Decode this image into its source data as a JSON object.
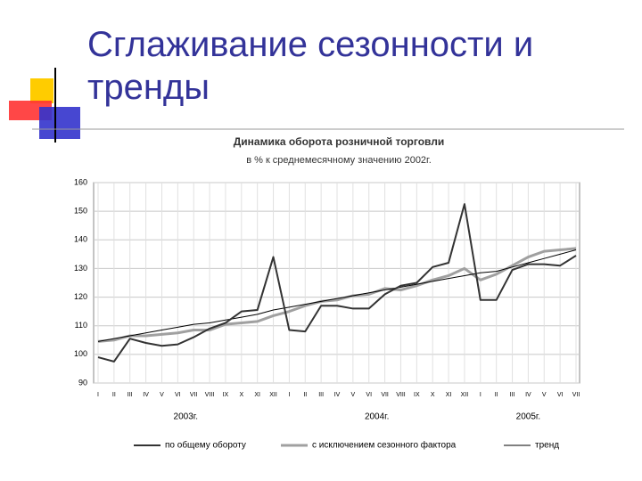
{
  "slide_title": "Сглаживание сезонности и тренды",
  "chart_data": {
    "type": "line",
    "title": "Динамика оборота розничной торговли",
    "subtitle": "в % к среднемесячному значению 2002г.",
    "categories": [
      "I",
      "II",
      "III",
      "IV",
      "V",
      "VI",
      "VII",
      "VIII",
      "IX",
      "X",
      "XI",
      "XII",
      "I",
      "II",
      "III",
      "IV",
      "V",
      "VI",
      "VII",
      "VIII",
      "IX",
      "X",
      "XI",
      "XII",
      "I",
      "II",
      "III",
      "IV",
      "V",
      "VI",
      "VII"
    ],
    "groups": [
      "2003г.",
      "2004г.",
      "2005г."
    ],
    "series": [
      {
        "name": "по общему обороту",
        "color": "#333333",
        "values": [
          99,
          97.5,
          105.5,
          104,
          103,
          103.5,
          106,
          109,
          111,
          115,
          115.5,
          134,
          108.5,
          108,
          117,
          117,
          116,
          116,
          121,
          124,
          125,
          130.5,
          132,
          152.5,
          119,
          119,
          129.5,
          131.5,
          131.5,
          131,
          134.5
        ]
      },
      {
        "name": "с исключением сезонного фактора",
        "color": "#a0a0a0",
        "values": [
          104.5,
          105,
          106.5,
          106.5,
          107,
          107.5,
          108.5,
          108.5,
          110.5,
          111,
          111.5,
          113.5,
          115,
          117,
          118.5,
          119,
          120.5,
          121,
          123,
          122.5,
          124,
          126,
          127.5,
          130,
          126,
          128,
          131,
          134,
          136,
          136.5,
          137
        ]
      },
      {
        "name": "тренд",
        "color": "#000000",
        "values": [
          104.5,
          105.5,
          106.5,
          107.5,
          108.5,
          109.5,
          110.5,
          111,
          112,
          113,
          114,
          115.5,
          116.5,
          117.5,
          118.5,
          119.5,
          120.5,
          121.5,
          122.5,
          123.5,
          124.5,
          125.5,
          126.5,
          127.5,
          128.5,
          129,
          130.5,
          132,
          133.5,
          135,
          136.5
        ]
      }
    ],
    "ylim": [
      90,
      160
    ],
    "yticks": [
      90,
      100,
      110,
      120,
      130,
      140,
      150,
      160
    ],
    "grid": true
  }
}
